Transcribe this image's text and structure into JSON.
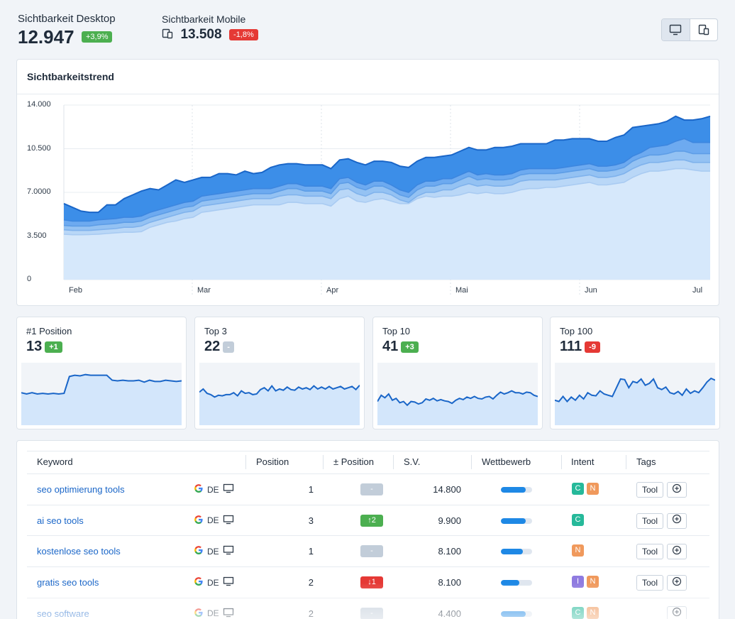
{
  "header": {
    "desktop": {
      "label": "Sichtbarkeit Desktop",
      "value": "12.947",
      "change": "+3,9%"
    },
    "mobile": {
      "label": "Sichtbarkeit Mobile",
      "value": "13.508",
      "change": "-1,8%"
    },
    "device_toggle": [
      "desktop-icon",
      "mobile-icon"
    ]
  },
  "chart_data": {
    "type": "area",
    "title": "Sichtbarkeitstrend",
    "y_ticks": [
      "14.000",
      "10.500",
      "7.0000",
      "3.500",
      "0"
    ],
    "x_ticks": [
      "Feb",
      "Mar",
      "Apr",
      "Mai",
      "Jun",
      "Jul"
    ],
    "ylim": [
      0,
      14000
    ],
    "grid": true,
    "series": [
      {
        "values": [
          3650,
          3600,
          3600,
          3620,
          3650,
          3700,
          3750,
          3800,
          3800,
          3850,
          4200,
          4400,
          4600,
          4700,
          4900,
          5000,
          5400,
          5500,
          5600,
          5700,
          5800,
          5900,
          6000,
          6000,
          6000,
          6000,
          6200,
          6200,
          6100,
          6100,
          6100,
          5900,
          6500,
          6700,
          6300,
          6200,
          6400,
          6500,
          6300,
          6100,
          6100,
          6500,
          6700,
          6600,
          6700,
          6700,
          6800,
          7000,
          6900,
          7000,
          6900,
          6900,
          7000,
          7200,
          7300,
          7300,
          7400,
          7400,
          7500,
          7600,
          7700,
          7800,
          7600,
          7600,
          7700,
          7800,
          8200,
          8500,
          8700,
          8700,
          8800,
          8900,
          8900,
          8800,
          8700,
          8700
        ]
      },
      {
        "values": [
          4000,
          3950,
          3950,
          3950,
          4000,
          4050,
          4100,
          4200,
          4200,
          4300,
          4600,
          4800,
          5000,
          5200,
          5400,
          5500,
          5900,
          6000,
          6100,
          6200,
          6300,
          6400,
          6500,
          6500,
          6500,
          6700,
          6800,
          6800,
          6700,
          6700,
          6700,
          6500,
          7200,
          7300,
          6900,
          6700,
          7000,
          7000,
          6800,
          6400,
          6200,
          6700,
          7000,
          7000,
          7200,
          7200,
          7500,
          7700,
          7500,
          7600,
          7500,
          7500,
          7600,
          7900,
          8000,
          8000,
          8000,
          8000,
          8100,
          8200,
          8300,
          8400,
          8200,
          8200,
          8300,
          8500,
          8900,
          9200,
          9400,
          9400,
          9500,
          9600,
          9600,
          9400,
          9400,
          9400
        ]
      },
      {
        "values": [
          4350,
          4300,
          4300,
          4300,
          4400,
          4450,
          4500,
          4600,
          4600,
          4700,
          5000,
          5200,
          5400,
          5600,
          5800,
          5900,
          6300,
          6400,
          6500,
          6600,
          6700,
          6800,
          6900,
          6900,
          6900,
          7100,
          7300,
          7300,
          7100,
          7100,
          7100,
          6900,
          7700,
          7800,
          7400,
          7200,
          7500,
          7500,
          7200,
          6800,
          6600,
          7200,
          7500,
          7500,
          7700,
          7700,
          8000,
          8300,
          8000,
          8100,
          8000,
          8000,
          8100,
          8400,
          8500,
          8500,
          8500,
          8500,
          8600,
          8700,
          8800,
          8900,
          8700,
          8700,
          8800,
          9000,
          9500,
          9800,
          10000,
          10000,
          10100,
          10300,
          10300,
          10100,
          10100,
          10100
        ]
      },
      {
        "values": [
          4800,
          4700,
          4700,
          4700,
          4800,
          4850,
          4900,
          5000,
          5000,
          5100,
          5400,
          5600,
          5800,
          6000,
          6200,
          6300,
          6700,
          6800,
          6900,
          7000,
          7100,
          7200,
          7300,
          7300,
          7300,
          7500,
          7700,
          7700,
          7500,
          7500,
          7500,
          7300,
          8100,
          8200,
          7800,
          7600,
          7900,
          7900,
          7600,
          7200,
          7000,
          7600,
          7900,
          7900,
          8100,
          8100,
          8400,
          8700,
          8400,
          8500,
          8400,
          8400,
          8500,
          8800,
          8900,
          8900,
          8900,
          8900,
          9000,
          9100,
          9200,
          9300,
          9100,
          9100,
          9200,
          9400,
          9900,
          10200,
          10600,
          10700,
          10800,
          11100,
          11300,
          11000,
          11000,
          11000
        ]
      },
      {
        "values": [
          6100,
          5800,
          5500,
          5400,
          5400,
          6000,
          6000,
          6500,
          6800,
          7100,
          7300,
          7200,
          7600,
          8000,
          7800,
          8000,
          8200,
          8200,
          8500,
          8500,
          8400,
          8700,
          8500,
          8600,
          9000,
          9200,
          9300,
          9300,
          9200,
          9200,
          9200,
          8900,
          9600,
          9700,
          9400,
          9200,
          9500,
          9500,
          9400,
          9100,
          9000,
          9500,
          9800,
          9800,
          9900,
          10000,
          10300,
          10600,
          10400,
          10400,
          10600,
          10600,
          10700,
          10900,
          10900,
          10900,
          10900,
          11200,
          11200,
          11300,
          11300,
          11300,
          11100,
          11100,
          11400,
          11600,
          12200,
          12300,
          12400,
          12500,
          12700,
          13100,
          12800,
          12800,
          12900,
          13100
        ]
      }
    ]
  },
  "mini_cards": [
    {
      "label": "#1 Position",
      "value": "13",
      "change": "+1",
      "tone": "g",
      "values": [
        52,
        50,
        52,
        50,
        51,
        50,
        51,
        50,
        51,
        78,
        80,
        79,
        81,
        80,
        80,
        80,
        80,
        72,
        71,
        72,
        71,
        71,
        72,
        69,
        72,
        70,
        70,
        72,
        71,
        70,
        71
      ]
    },
    {
      "label": "Top 3",
      "value": "22",
      "change": "-",
      "tone": "n",
      "values": [
        53,
        58,
        51,
        49,
        45,
        48,
        47,
        49,
        49,
        52,
        47,
        55,
        51,
        52,
        49,
        50,
        57,
        60,
        55,
        63,
        55,
        58,
        56,
        61,
        57,
        56,
        61,
        58,
        60,
        57,
        63,
        58,
        61,
        58,
        62,
        58,
        60,
        62,
        58,
        60,
        62,
        57,
        64
      ]
    },
    {
      "label": "Top 10",
      "value": "41",
      "change": "+3",
      "tone": "g",
      "values": [
        38,
        48,
        44,
        50,
        40,
        43,
        36,
        38,
        32,
        38,
        37,
        34,
        36,
        42,
        40,
        43,
        39,
        41,
        39,
        38,
        35,
        40,
        43,
        41,
        45,
        43,
        46,
        43,
        42,
        45,
        46,
        42,
        48,
        53,
        50,
        52,
        55,
        52,
        52,
        50,
        53,
        52,
        48,
        46
      ]
    },
    {
      "label": "Top 100",
      "value": "111",
      "change": "-9",
      "tone": "r",
      "values": [
        40,
        38,
        46,
        38,
        45,
        40,
        48,
        42,
        52,
        48,
        47,
        55,
        50,
        48,
        46,
        60,
        74,
        73,
        60,
        70,
        68,
        74,
        64,
        67,
        74,
        60,
        57,
        61,
        52,
        50,
        54,
        48,
        58,
        51,
        55,
        52,
        60,
        69,
        75,
        72
      ]
    }
  ],
  "table": {
    "columns": [
      "Keyword",
      "Position",
      "± Position",
      "S.V.",
      "Wettbewerb",
      "Intent",
      "Tags"
    ],
    "rows": [
      {
        "keyword": "seo optimierung tools",
        "db": "DE",
        "position": "1",
        "change": "-",
        "change_tone": "n",
        "sv": "14.800",
        "competition": 0.8,
        "intents": [
          {
            "l": "C",
            "c": "#26b99a"
          },
          {
            "l": "N",
            "c": "#f0995c"
          }
        ],
        "tag": "Tool"
      },
      {
        "keyword": "ai seo tools",
        "db": "DE",
        "position": "3",
        "change": "↑2",
        "change_tone": "g",
        "sv": "9.900",
        "competition": 0.8,
        "intents": [
          {
            "l": "C",
            "c": "#26b99a"
          }
        ],
        "tag": "Tool"
      },
      {
        "keyword": "kostenlose seo tools",
        "db": "DE",
        "position": "1",
        "change": "-",
        "change_tone": "n",
        "sv": "8.100",
        "competition": 0.7,
        "intents": [
          {
            "l": "N",
            "c": "#f0995c"
          }
        ],
        "tag": "Tool"
      },
      {
        "keyword": "gratis seo tools",
        "db": "DE",
        "position": "2",
        "change": "↓1",
        "change_tone": "r",
        "sv": "8.100",
        "competition": 0.6,
        "intents": [
          {
            "l": "I",
            "c": "#8f7be0"
          },
          {
            "l": "N",
            "c": "#f0995c"
          }
        ],
        "tag": "Tool"
      },
      {
        "keyword": "seo software",
        "db": "DE",
        "position": "2",
        "change": "-",
        "change_tone": "n",
        "sv": "4.400",
        "competition": 0.8,
        "intents": [
          {
            "l": "C",
            "c": "#26b99a"
          },
          {
            "l": "N",
            "c": "#f0995c"
          }
        ],
        "tag": ""
      }
    ]
  },
  "colors": {
    "accent": "#1e88e5",
    "positive": "#4caf50",
    "negative": "#e53935",
    "neutral": "#c2cdd9"
  }
}
